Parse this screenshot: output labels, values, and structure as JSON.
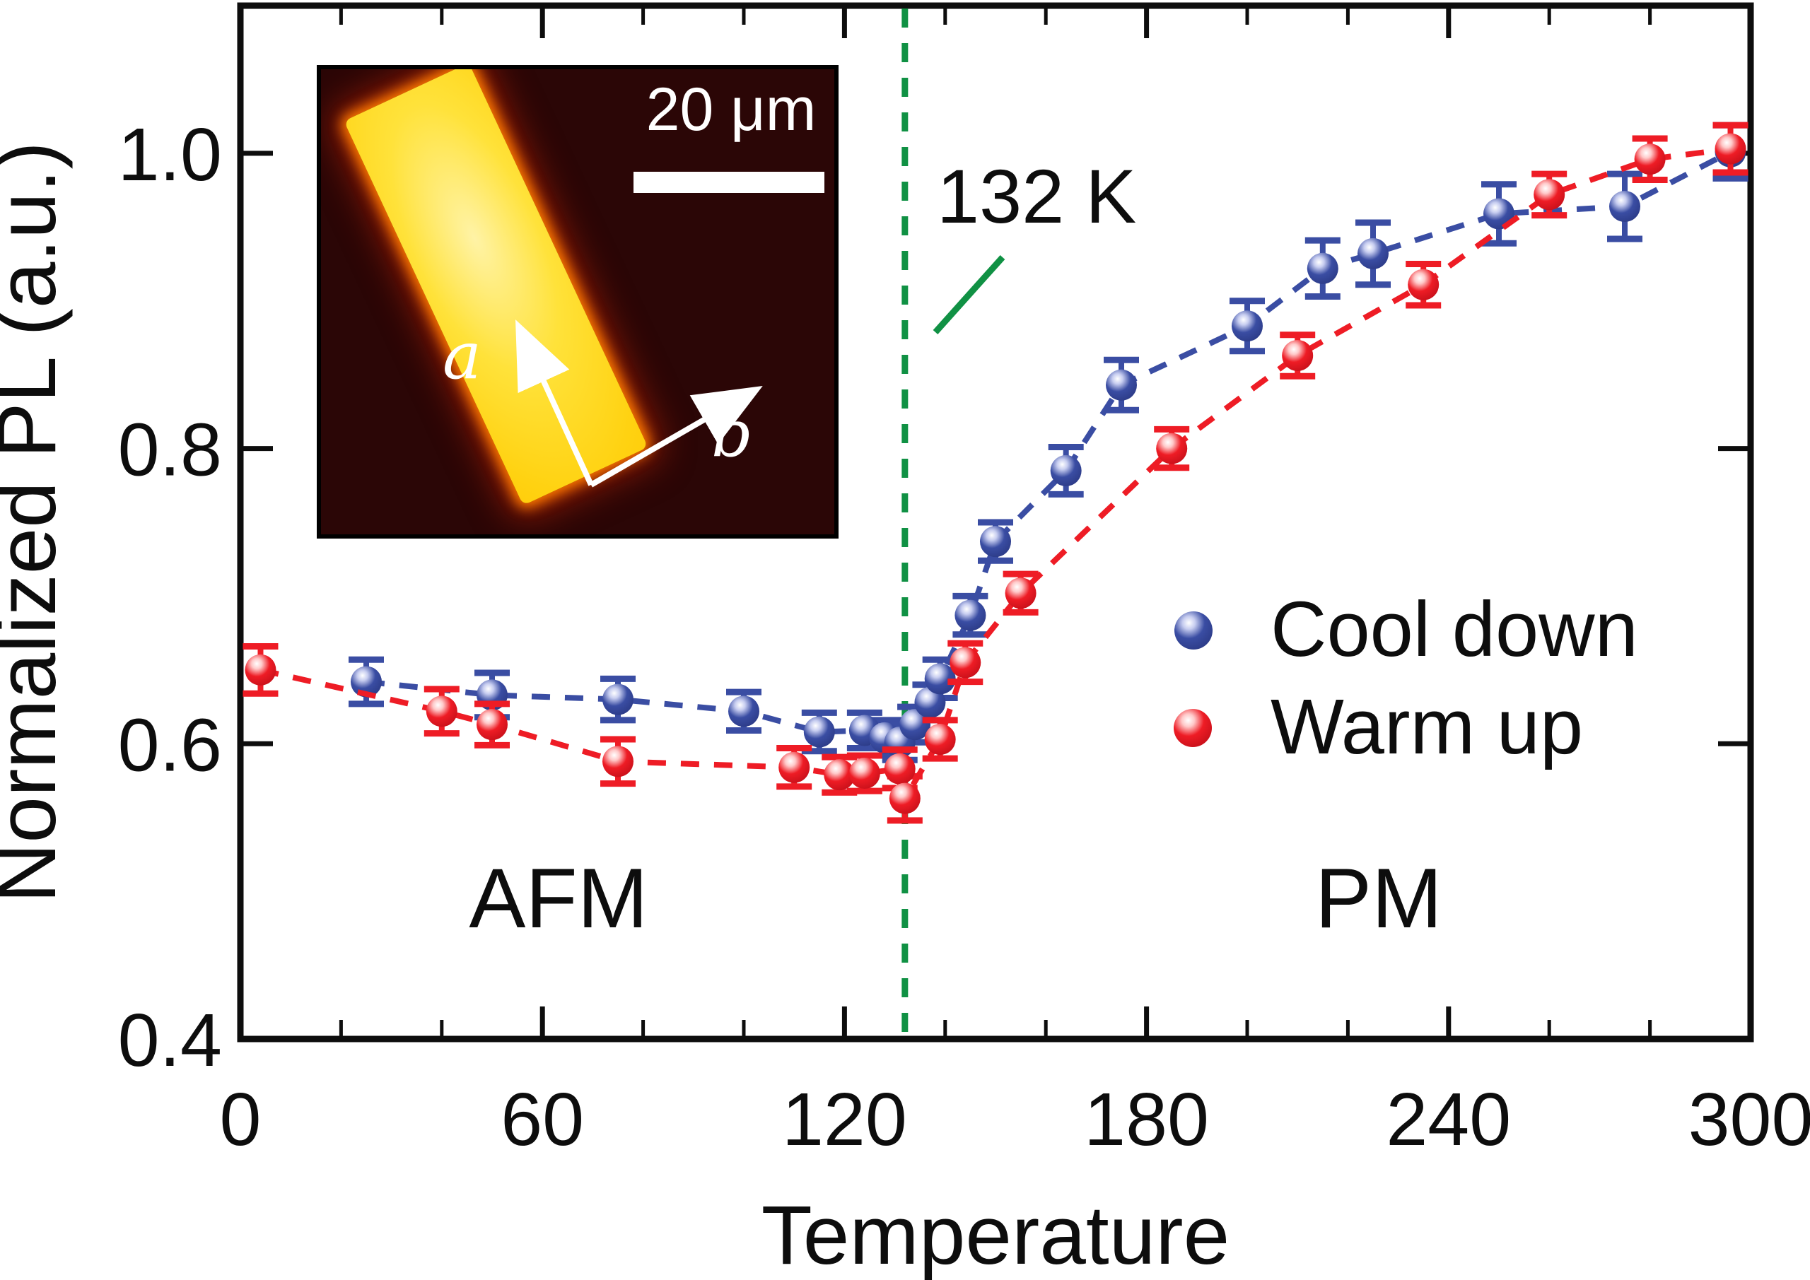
{
  "figure": {
    "y_axis_label": "Normalized PL (a.u.)",
    "x_axis_label": "Temperature",
    "annotation_transition": "132 K",
    "region_left_label": "AFM",
    "region_right_label": "PM",
    "legend": {
      "cool_down_label": "Cool down",
      "warm_up_label": "Warm up"
    },
    "inset": {
      "scale_bar_label": "20 μm",
      "axis_a_label": "a",
      "axis_b_label": "b"
    },
    "colors": {
      "cool_down": "#3a4da3",
      "warm_up": "#ee1c25",
      "transition_green": "#109144",
      "axis_black": "#0d0d0d"
    }
  },
  "chart_data": {
    "type": "scatter",
    "title": "",
    "xlabel": "Temperature",
    "ylabel": "Normalized PL (a.u.)",
    "xlim": [
      0,
      300
    ],
    "ylim": [
      0.4,
      1.1
    ],
    "x_ticks": [
      0,
      60,
      120,
      180,
      240,
      300
    ],
    "x_minor_step": 20,
    "y_ticks": [
      0.4,
      0.6,
      0.8,
      1.0
    ],
    "grid": false,
    "legend_position": "center-right",
    "transition_line_x": 132,
    "annotations": [
      "132 K",
      "AFM",
      "PM"
    ],
    "series": [
      {
        "name": "Cool down",
        "color": "#3a4da3",
        "line_style": "dashed",
        "marker": "sphere",
        "gradient": [
          "#ffffff",
          "#c7cdf0",
          "#3a4da3",
          "#2c3b87"
        ],
        "x": [
          25,
          50,
          75,
          100,
          115,
          124,
          128,
          131,
          134,
          137,
          139,
          145,
          150,
          164,
          175,
          200,
          215,
          225,
          250,
          275,
          296
        ],
        "y": [
          0.642,
          0.633,
          0.63,
          0.622,
          0.608,
          0.609,
          0.604,
          0.601,
          0.613,
          0.628,
          0.644,
          0.687,
          0.737,
          0.785,
          0.843,
          0.883,
          0.922,
          0.932,
          0.959,
          0.964,
          1.001
        ],
        "err": [
          0.015,
          0.015,
          0.014,
          0.013,
          0.013,
          0.012,
          0.012,
          0.012,
          0.012,
          0.012,
          0.013,
          0.013,
          0.013,
          0.016,
          0.017,
          0.017,
          0.019,
          0.021,
          0.02,
          0.022,
          0.018
        ]
      },
      {
        "name": "Warm up",
        "color": "#ee1c25",
        "line_style": "dashed",
        "marker": "sphere",
        "gradient": [
          "#ffffff",
          "#ffc9c9",
          "#ee1c25",
          "#c8101a"
        ],
        "x": [
          4,
          40,
          50,
          75,
          110,
          119,
          124,
          131,
          132,
          139,
          144,
          155,
          185,
          210,
          235,
          260,
          280,
          296
        ],
        "y": [
          0.65,
          0.622,
          0.613,
          0.588,
          0.584,
          0.579,
          0.58,
          0.583,
          0.563,
          0.603,
          0.655,
          0.702,
          0.8,
          0.863,
          0.911,
          0.972,
          0.996,
          1.003
        ],
        "err": [
          0.016,
          0.015,
          0.014,
          0.015,
          0.013,
          0.012,
          0.012,
          0.013,
          0.015,
          0.013,
          0.013,
          0.013,
          0.013,
          0.014,
          0.014,
          0.014,
          0.014,
          0.016
        ]
      }
    ]
  }
}
